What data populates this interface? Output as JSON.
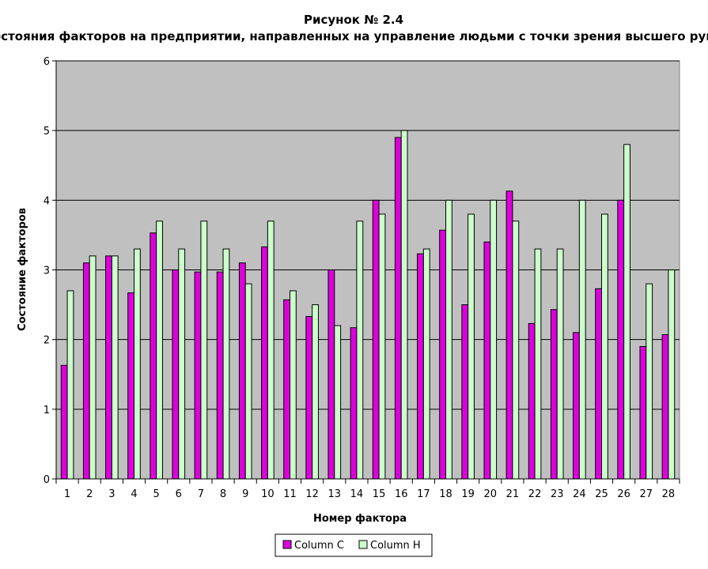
{
  "chart_data": {
    "type": "bar",
    "title": "Рисунок № 2.4",
    "subtitle": "Оценка состояния факторов на предприятии, направленных на управление людьми с точки зрения высшего руководства",
    "xlabel": "Номер фактора",
    "ylabel": "Состояние факторов",
    "ylim": [
      0,
      6
    ],
    "yticks": [
      0,
      1,
      2,
      3,
      4,
      5,
      6
    ],
    "grid": true,
    "legend_position": "bottom",
    "categories": [
      "1",
      "2",
      "3",
      "4",
      "5",
      "6",
      "7",
      "8",
      "9",
      "10",
      "11",
      "12",
      "13",
      "14",
      "15",
      "16",
      "17",
      "18",
      "19",
      "20",
      "21",
      "22",
      "23",
      "24",
      "25",
      "26",
      "27",
      "28"
    ],
    "series": [
      {
        "name": "Column C",
        "color": "#dd00dd",
        "values": [
          1.63,
          3.1,
          3.2,
          2.67,
          3.53,
          3.0,
          2.97,
          2.97,
          3.1,
          3.33,
          2.57,
          2.33,
          3.0,
          2.17,
          4.0,
          4.9,
          3.23,
          3.57,
          2.5,
          3.4,
          4.13,
          2.23,
          2.43,
          2.1,
          2.73,
          4.0,
          1.9,
          2.07
        ]
      },
      {
        "name": "Column H",
        "color": "#ccffcc",
        "values": [
          2.7,
          3.2,
          3.2,
          3.3,
          3.7,
          3.3,
          3.7,
          3.3,
          2.8,
          3.7,
          2.7,
          2.5,
          2.2,
          3.7,
          3.8,
          5.0,
          3.3,
          4.0,
          3.8,
          4.0,
          3.7,
          3.3,
          3.3,
          4.0,
          3.8,
          4.8,
          2.8,
          3.0
        ]
      }
    ],
    "plot_background": "#c0c0c0"
  }
}
